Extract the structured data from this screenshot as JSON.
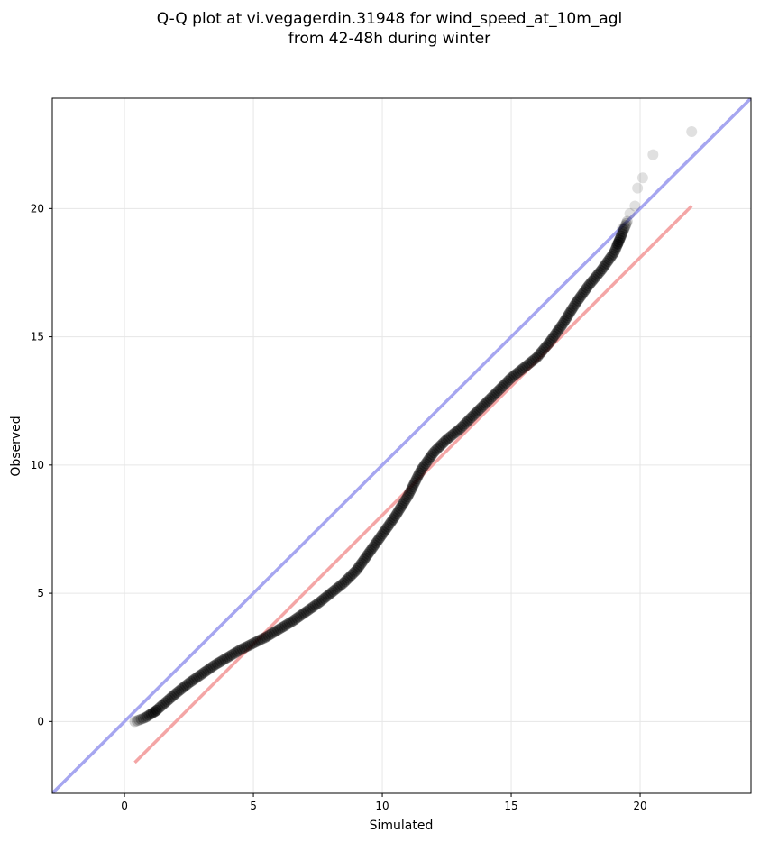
{
  "chart_data": {
    "type": "scatter",
    "title": "Q-Q plot at vi.vegagerdin.31948 for wind_speed_at_10m_agl",
    "subtitle": "from 42-48h during winter",
    "xlabel": "Simulated",
    "ylabel": "Observed",
    "xlim": [
      -2.8,
      24.3
    ],
    "ylim": [
      -2.8,
      24.3
    ],
    "xticks": [
      0,
      5,
      10,
      15,
      20
    ],
    "yticks": [
      0,
      5,
      10,
      15,
      20
    ],
    "x_tick_labels": [
      "0",
      "5",
      "10",
      "15",
      "20"
    ],
    "y_tick_labels": [
      "0",
      "5",
      "10",
      "15",
      "20"
    ],
    "grid": true,
    "identity_line": {
      "from": [
        -2.8,
        -2.8
      ],
      "to": [
        24.3,
        24.3
      ],
      "color": "#a6a6f0"
    },
    "fit_line": {
      "from": [
        0.4,
        -1.6
      ],
      "to": [
        22.0,
        20.1
      ],
      "color": "#f4a6a6"
    },
    "point_color": "#000000",
    "quantile_curve": [
      [
        0.4,
        0.0
      ],
      [
        0.8,
        0.15
      ],
      [
        1.2,
        0.4
      ],
      [
        1.6,
        0.75
      ],
      [
        2.0,
        1.1
      ],
      [
        2.5,
        1.5
      ],
      [
        3.0,
        1.85
      ],
      [
        3.5,
        2.2
      ],
      [
        4.0,
        2.5
      ],
      [
        4.5,
        2.8
      ],
      [
        5.0,
        3.05
      ],
      [
        5.5,
        3.3
      ],
      [
        6.0,
        3.6
      ],
      [
        6.5,
        3.9
      ],
      [
        7.0,
        4.25
      ],
      [
        7.5,
        4.6
      ],
      [
        8.0,
        5.0
      ],
      [
        8.5,
        5.4
      ],
      [
        9.0,
        5.9
      ],
      [
        9.5,
        6.6
      ],
      [
        10.0,
        7.3
      ],
      [
        10.5,
        8.0
      ],
      [
        11.0,
        8.8
      ],
      [
        11.5,
        9.8
      ],
      [
        12.0,
        10.5
      ],
      [
        12.5,
        11.0
      ],
      [
        13.0,
        11.4
      ],
      [
        13.5,
        11.9
      ],
      [
        14.0,
        12.4
      ],
      [
        14.5,
        12.9
      ],
      [
        15.0,
        13.4
      ],
      [
        15.5,
        13.8
      ],
      [
        16.0,
        14.2
      ],
      [
        16.5,
        14.8
      ],
      [
        17.0,
        15.5
      ],
      [
        17.5,
        16.3
      ],
      [
        18.0,
        17.0
      ],
      [
        18.5,
        17.6
      ],
      [
        19.0,
        18.3
      ],
      [
        19.5,
        19.5
      ]
    ],
    "n_points": 320,
    "outliers": [
      [
        19.1,
        18.6
      ],
      [
        19.3,
        19.2
      ],
      [
        19.6,
        19.8
      ],
      [
        19.8,
        20.1
      ],
      [
        19.9,
        20.8
      ],
      [
        20.1,
        21.2
      ],
      [
        20.5,
        22.1
      ],
      [
        22.0,
        23.0
      ]
    ]
  }
}
